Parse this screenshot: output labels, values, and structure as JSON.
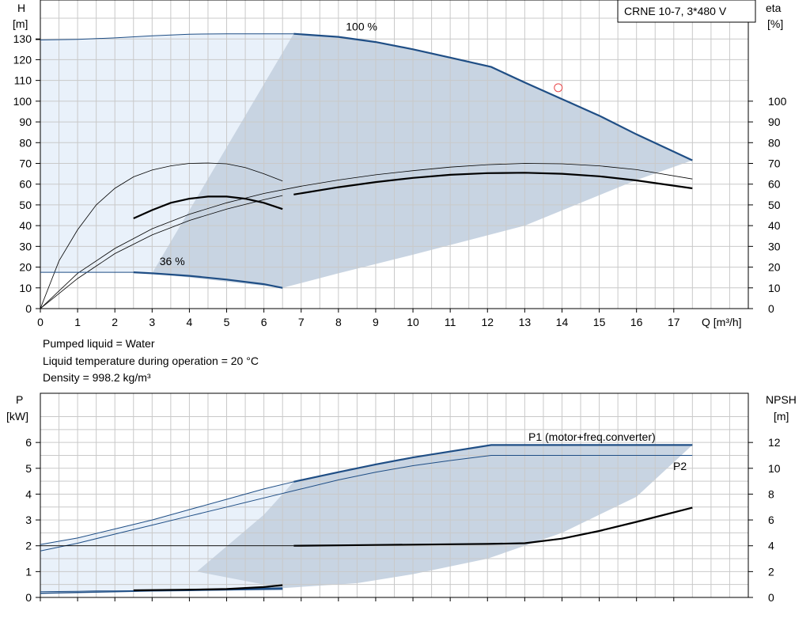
{
  "chart_data": [
    {
      "type": "line",
      "title": "CRNE 10-7, 3*480 V",
      "xlabel": "Q [m³/h]",
      "ylabel": "H [m]",
      "y2label": "eta [%]",
      "xlim": [
        0,
        19
      ],
      "ylim": [
        0,
        140
      ],
      "y2lim": [
        0,
        140
      ],
      "grid": true,
      "x_ticks": [
        "0",
        "1",
        "2",
        "3",
        "4",
        "5",
        "6",
        "7",
        "8",
        "9",
        "10",
        "11",
        "12",
        "13",
        "14",
        "15",
        "16",
        "17"
      ],
      "y_ticks": [
        "0",
        "10",
        "20",
        "30",
        "40",
        "50",
        "60",
        "70",
        "80",
        "90",
        "100",
        "110",
        "120",
        "130"
      ],
      "y2_ticks": [
        "0",
        "10",
        "20",
        "30",
        "40",
        "50",
        "60",
        "70",
        "80",
        "90",
        "100"
      ],
      "annotations": {
        "speed_max": {
          "text": "100 %",
          "x": 8.2,
          "y": 134
        },
        "speed_min": {
          "text": "36 %",
          "x": 3.2,
          "y": 21
        }
      },
      "series": [
        {
          "role": "H_100",
          "x": [
            6.8,
            8,
            9,
            10,
            11,
            12.1,
            13,
            14,
            15,
            16,
            17.5
          ],
          "y": [
            132.5,
            131,
            128.5,
            125,
            121,
            116.5,
            109,
            101,
            93,
            84,
            71.5
          ]
        },
        {
          "role": "H_100_ext",
          "x": [
            0,
            1,
            2,
            3,
            4,
            5,
            6,
            6.8
          ],
          "y": [
            129.5,
            129.8,
            130.5,
            131.5,
            132.3,
            132.5,
            132.5,
            132.5
          ]
        },
        {
          "role": "H_36",
          "x": [
            2.5,
            3,
            4,
            5,
            6,
            6.5
          ],
          "y": [
            17.5,
            17,
            15.8,
            14,
            11.8,
            10
          ]
        },
        {
          "role": "H_36_ext",
          "x": [
            0,
            0.5,
            1,
            1.5,
            2,
            2.5
          ],
          "y": [
            17.5,
            17.5,
            17.5,
            17.5,
            17.5,
            17.5
          ]
        },
        {
          "role": "eta_100",
          "x": [
            6.8,
            8,
            9,
            10,
            11,
            12,
            13,
            14,
            15,
            16,
            17.5
          ],
          "y": [
            55,
            58.5,
            61,
            63,
            64.5,
            65.3,
            65.5,
            65,
            63.8,
            61.8,
            58
          ]
        },
        {
          "role": "eta_100_ext",
          "x": [
            0,
            1,
            2,
            3,
            4,
            5,
            6,
            7,
            8,
            9,
            10,
            11,
            12,
            13,
            14,
            15,
            16,
            17.5
          ],
          "y": [
            0,
            17,
            29,
            38.5,
            45.5,
            51,
            55.5,
            59,
            62,
            64.5,
            66.5,
            68.2,
            69.4,
            70,
            69.8,
            68.8,
            67,
            62.5
          ]
        },
        {
          "role": "eta_36",
          "x": [
            2.5,
            3,
            3.5,
            4,
            4.5,
            5,
            5.5,
            6,
            6.5
          ],
          "y": [
            43.5,
            47.5,
            51,
            53,
            54,
            54,
            53,
            51,
            48
          ]
        },
        {
          "role": "eta_36_ext",
          "x": [
            0,
            0.5,
            1,
            1.5,
            2,
            2.5,
            3,
            3.5,
            4,
            4.5,
            5,
            5.5,
            6,
            6.5
          ],
          "y": [
            0,
            23,
            38,
            50,
            58,
            63.5,
            66.8,
            68.8,
            70,
            70.2,
            69.8,
            68,
            65,
            61.5
          ]
        },
        {
          "role": "eta_ext_b",
          "x": [
            0,
            1,
            2,
            3,
            4,
            5,
            6,
            6.5
          ],
          "y": [
            0,
            14.5,
            26.5,
            35.5,
            42.5,
            48,
            52.5,
            54.5
          ]
        }
      ],
      "operating_point": {
        "x": 13.9,
        "y": 106.5
      }
    },
    {
      "type": "line",
      "xlabel": "",
      "ylabel": "P [kW]",
      "y2label": "NPSH [m]",
      "xlim": [
        0,
        19
      ],
      "ylim": [
        0,
        7.2
      ],
      "y2lim": [
        0,
        14.4
      ],
      "grid": true,
      "y_ticks": [
        "0",
        "1",
        "2",
        "3",
        "4",
        "5",
        "6"
      ],
      "y2_ticks": [
        "0",
        "2",
        "4",
        "6",
        "8",
        "10",
        "12"
      ],
      "series": [
        {
          "name": "P1 (motor+freq.converter)",
          "x": [
            6.8,
            8,
            9,
            10,
            11,
            12.1,
            13,
            14,
            15,
            16,
            17.5
          ],
          "y": [
            4.48,
            4.85,
            5.15,
            5.42,
            5.65,
            5.9,
            5.9,
            5.9,
            5.9,
            5.9,
            5.9
          ]
        },
        {
          "role": "P1_ext",
          "x": [
            0,
            1,
            2,
            3,
            4,
            5,
            6,
            6.8
          ],
          "y": [
            2.05,
            2.3,
            2.65,
            3.0,
            3.4,
            3.8,
            4.2,
            4.48
          ]
        },
        {
          "name": "P2",
          "x": [
            0,
            1,
            2,
            3,
            4,
            5,
            6,
            7,
            8,
            9,
            10,
            11,
            12.1,
            13,
            14,
            15,
            16,
            17.5
          ],
          "y": [
            1.8,
            2.1,
            2.45,
            2.8,
            3.15,
            3.5,
            3.85,
            4.2,
            4.55,
            4.85,
            5.1,
            5.3,
            5.5,
            5.5,
            5.5,
            5.5,
            5.5,
            5.5
          ]
        },
        {
          "role": "NPSH",
          "x": [
            6.8,
            8,
            9,
            10,
            11,
            12,
            13,
            14,
            15,
            16,
            17.5
          ],
          "y2": [
            4.0,
            4.03,
            4.06,
            4.09,
            4.12,
            4.14,
            4.2,
            4.55,
            5.15,
            5.85,
            6.95
          ]
        },
        {
          "role": "NPSH_ext",
          "x": [
            0,
            1,
            2,
            3,
            4,
            5,
            6,
            6.8
          ],
          "y2": [
            4.0,
            4.0,
            4.0,
            4.0,
            4.0,
            4.0,
            4.0,
            4.0
          ]
        },
        {
          "role": "P1_36",
          "x": [
            2.5,
            3,
            4,
            5,
            6,
            6.5
          ],
          "y": [
            0.26,
            0.27,
            0.29,
            0.31,
            0.34,
            0.36
          ]
        },
        {
          "role": "P1_36_ext",
          "x": [
            0,
            0.5,
            1,
            1.5,
            2,
            2.5
          ],
          "y": [
            0.22,
            0.23,
            0.24,
            0.25,
            0.255,
            0.26
          ]
        },
        {
          "role": "P2_36",
          "x": [
            0,
            1,
            2,
            3,
            4,
            5,
            6,
            6.5
          ],
          "y": [
            0.16,
            0.19,
            0.22,
            0.25,
            0.27,
            0.29,
            0.31,
            0.32
          ]
        },
        {
          "role": "NPSH_36",
          "x": [
            2.5,
            3,
            4,
            5,
            6,
            6.5
          ],
          "y2": [
            0.55,
            0.57,
            0.6,
            0.65,
            0.8,
            0.95
          ]
        }
      ]
    }
  ],
  "notes": {
    "line1": "Pumped liquid = Water",
    "line2": "Liquid temperature during operation = 20 °C",
    "line3": "Density = 998.2 kg/m³"
  },
  "colors": {
    "curve_main": "#1f4e85",
    "curve_thin": "#1f4e85",
    "curve_black": "#000000",
    "area_dark": "#c8d4e2",
    "area_light": "#e9f1fa",
    "grid": "#c9c9c9",
    "point": "#e8474a"
  }
}
